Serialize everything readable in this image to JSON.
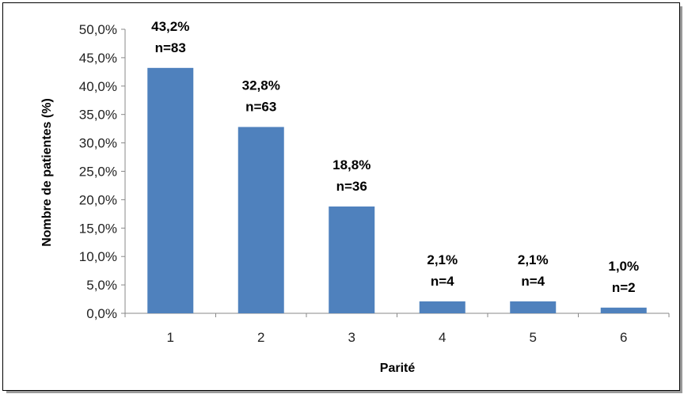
{
  "chart_data": {
    "type": "bar",
    "categories": [
      "1",
      "2",
      "3",
      "4",
      "5",
      "6"
    ],
    "values": [
      43.2,
      32.8,
      18.8,
      2.1,
      2.1,
      1.0
    ],
    "value_labels": [
      "43,2%",
      "32,8%",
      "18,8%",
      "2,1%",
      "2,1%",
      "1,0%"
    ],
    "count_labels": [
      "n=83",
      "n=63",
      "n=36",
      "n=4",
      "n=4",
      "n=2"
    ],
    "ylim": [
      0,
      50
    ],
    "y_ticks": [
      "0,0%",
      "5,0%",
      "10,0%",
      "15,0%",
      "20,0%",
      "25,0%",
      "30,0%",
      "35,0%",
      "40,0%",
      "45,0%",
      "50,0%"
    ],
    "xlabel": "Parité",
    "ylabel": "Nombre de patientes (%)",
    "grid": false,
    "legend": "none",
    "bar_color": "#4f81bd"
  }
}
